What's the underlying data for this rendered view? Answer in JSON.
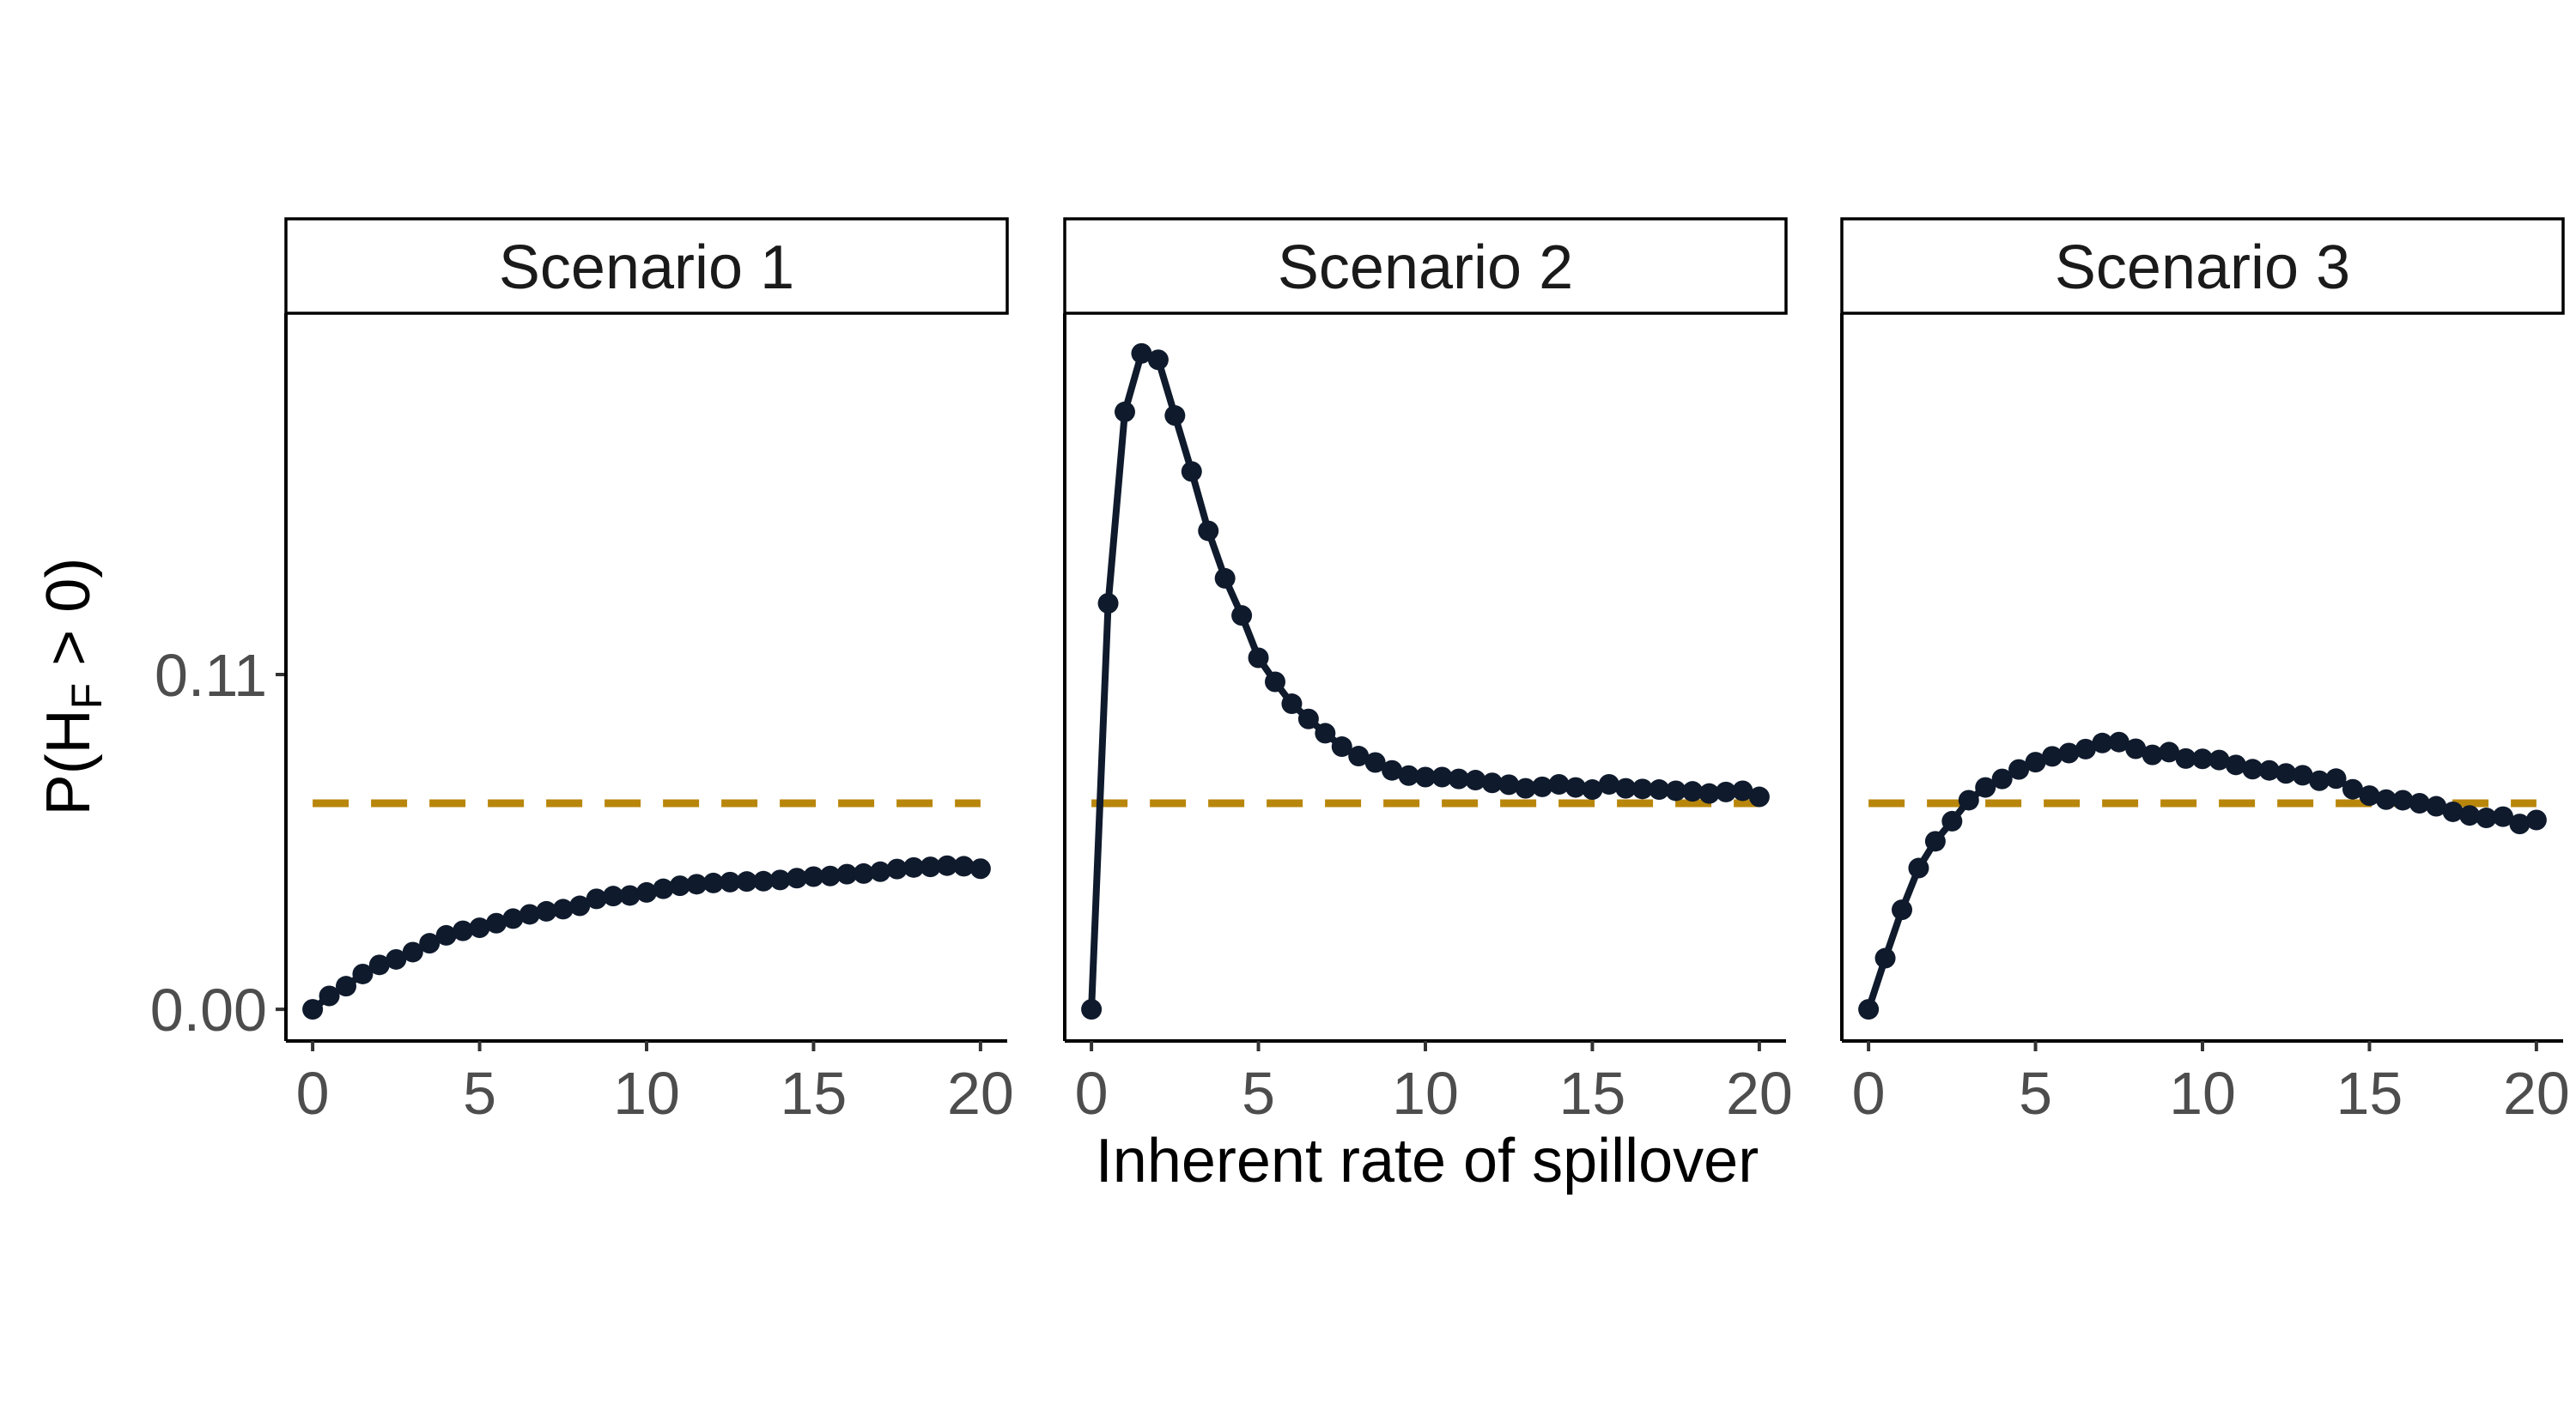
{
  "ylabel_prefix": "P(H",
  "ylabel_subscript": "F",
  "ylabel_suffix": " > 0)",
  "xlabel": "Inherent rate of spillover",
  "chart_data": {
    "type": "line",
    "xlim": [
      -0.8,
      20.8
    ],
    "ylim": [
      -0.0104,
      0.2287
    ],
    "x_ticks": [
      0,
      5,
      10,
      15,
      20
    ],
    "x_tick_labels": [
      "0",
      "5",
      "10",
      "15",
      "20"
    ],
    "y_ticks": [
      0.0,
      0.11
    ],
    "y_tick_labels": [
      "0.00",
      "0.11"
    ],
    "reference_value": 0.0677,
    "grid": false,
    "colors": {
      "series": "#0f1a2c",
      "reference": "#b8860b"
    },
    "x": [
      0,
      0.5,
      1,
      1.5,
      2,
      2.5,
      3,
      3.5,
      4,
      4.5,
      5,
      5.5,
      6,
      6.5,
      7,
      7.5,
      8,
      8.5,
      9,
      9.5,
      10,
      10.5,
      11,
      11.5,
      12,
      12.5,
      13,
      13.5,
      14,
      14.5,
      15,
      15.5,
      16,
      16.5,
      17,
      17.5,
      18,
      18.5,
      19,
      19.5,
      20
    ],
    "panels": [
      {
        "title": "Scenario 1",
        "values": [
          0.0,
          0.0044,
          0.0076,
          0.0116,
          0.0146,
          0.0164,
          0.0188,
          0.0217,
          0.0243,
          0.0258,
          0.0268,
          0.0283,
          0.0298,
          0.0312,
          0.0322,
          0.0329,
          0.034,
          0.0363,
          0.0372,
          0.0374,
          0.0384,
          0.0396,
          0.0406,
          0.0411,
          0.0415,
          0.0418,
          0.042,
          0.0421,
          0.0425,
          0.0431,
          0.0436,
          0.0438,
          0.0444,
          0.0446,
          0.0452,
          0.0461,
          0.0466,
          0.0468,
          0.0472,
          0.047,
          0.0462
        ]
      },
      {
        "title": "Scenario 2",
        "values": [
          0.0,
          0.1334,
          0.1963,
          0.2155,
          0.2134,
          0.1951,
          0.1767,
          0.1572,
          0.1416,
          0.1294,
          0.1155,
          0.1076,
          0.1004,
          0.0954,
          0.0907,
          0.0863,
          0.0832,
          0.0811,
          0.0785,
          0.0768,
          0.0763,
          0.0763,
          0.0757,
          0.0753,
          0.0744,
          0.0738,
          0.0726,
          0.0731,
          0.0739,
          0.0729,
          0.0722,
          0.0739,
          0.0726,
          0.0724,
          0.0722,
          0.0718,
          0.0716,
          0.0709,
          0.0714,
          0.0718,
          0.0698
        ]
      },
      {
        "title": "Scenario 3",
        "values": [
          0.0,
          0.0168,
          0.0327,
          0.0464,
          0.0552,
          0.0618,
          0.0687,
          0.0729,
          0.0757,
          0.0788,
          0.0812,
          0.0831,
          0.0842,
          0.0855,
          0.0875,
          0.0878,
          0.0856,
          0.0836,
          0.0845,
          0.0824,
          0.0823,
          0.0819,
          0.0803,
          0.0789,
          0.0785,
          0.0775,
          0.0769,
          0.0751,
          0.0758,
          0.0723,
          0.0702,
          0.0689,
          0.0687,
          0.0677,
          0.0667,
          0.0649,
          0.0637,
          0.0629,
          0.0633,
          0.0609,
          0.0622
        ]
      }
    ]
  }
}
